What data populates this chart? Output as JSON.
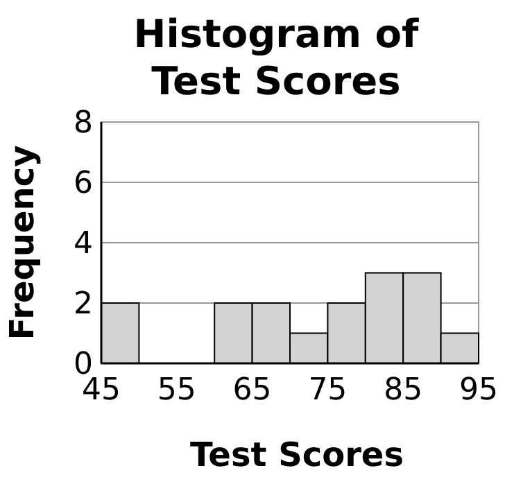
{
  "chart_data": {
    "type": "histogram",
    "title": "Histogram of Test Scores",
    "xlabel": "Test Scores",
    "ylabel": "Frequency",
    "bins": [
      45,
      50,
      55,
      60,
      65,
      70,
      75,
      80,
      85,
      90,
      95
    ],
    "values": [
      2,
      0,
      0,
      2,
      2,
      1,
      2,
      3,
      3,
      1
    ],
    "color": "#d3d3d3",
    "xlim": [
      45,
      95
    ],
    "xticks": [
      45,
      55,
      65,
      75,
      85,
      95
    ],
    "ylim": [
      0,
      8
    ],
    "yticks": [
      0,
      2,
      4,
      6,
      8
    ],
    "grid": "y"
  }
}
